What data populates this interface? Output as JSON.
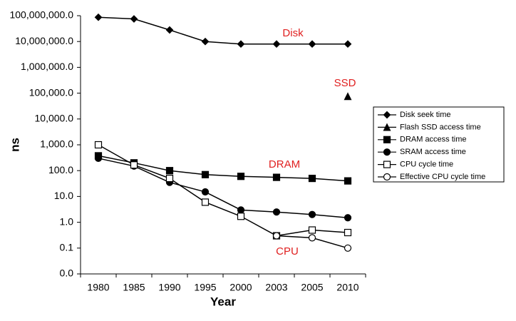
{
  "chart_data": {
    "type": "line",
    "y_label": "ns",
    "x_label": "Year",
    "log_scale": "y",
    "categories": [
      "1980",
      "1985",
      "1990",
      "1995",
      "2000",
      "2003",
      "2005",
      "2010"
    ],
    "ylim": [
      0.01,
      100000000
    ],
    "yticks": [
      {
        "value": 0.01,
        "label": "0.0"
      },
      {
        "value": 0.1,
        "label": "0.1"
      },
      {
        "value": 1,
        "label": "1.0"
      },
      {
        "value": 10,
        "label": "10.0"
      },
      {
        "value": 100,
        "label": "100.0"
      },
      {
        "value": 1000,
        "label": "1,000.0"
      },
      {
        "value": 10000,
        "label": "10,000.0"
      },
      {
        "value": 100000,
        "label": "100,000.0"
      },
      {
        "value": 1000000,
        "label": "1,000,000.0"
      },
      {
        "value": 10000000,
        "label": "10,000,000.0"
      },
      {
        "value": 100000000,
        "label": "100,000,000.0"
      }
    ],
    "series": [
      {
        "name": "Disk seek time",
        "color": "#000000",
        "marker": "diamond",
        "values": [
          87000000,
          75000000,
          28000000,
          10000000,
          8000000,
          8000000,
          8000000,
          8000000
        ]
      },
      {
        "name": "Flash SSD access time",
        "color": "#000000",
        "marker": "triangle",
        "values": [
          null,
          null,
          null,
          null,
          null,
          null,
          null,
          75000
        ]
      },
      {
        "name": "DRAM access time",
        "color": "#000000",
        "marker": "square",
        "values": [
          375,
          200,
          100,
          70,
          60,
          55,
          50,
          40
        ]
      },
      {
        "name": "SRAM access time",
        "color": "#000000",
        "marker": "circle",
        "values": [
          300,
          150,
          35,
          15,
          3,
          2.5,
          2,
          1.5
        ]
      },
      {
        "name": "CPU cycle time",
        "color": "#000000",
        "marker": "open-square",
        "values": [
          1000,
          166,
          50,
          6,
          1.7,
          0.3,
          0.5,
          0.4
        ]
      },
      {
        "name": "Effective CPU cycle time",
        "color": "#000000",
        "marker": "open-circle",
        "values": [
          null,
          null,
          null,
          null,
          null,
          0.3,
          0.25,
          0.1
        ]
      }
    ],
    "annotations": [
      "Disk",
      "SSD",
      "DRAM",
      "CPU"
    ],
    "annotation_color": "#e02020",
    "legend": "right"
  }
}
